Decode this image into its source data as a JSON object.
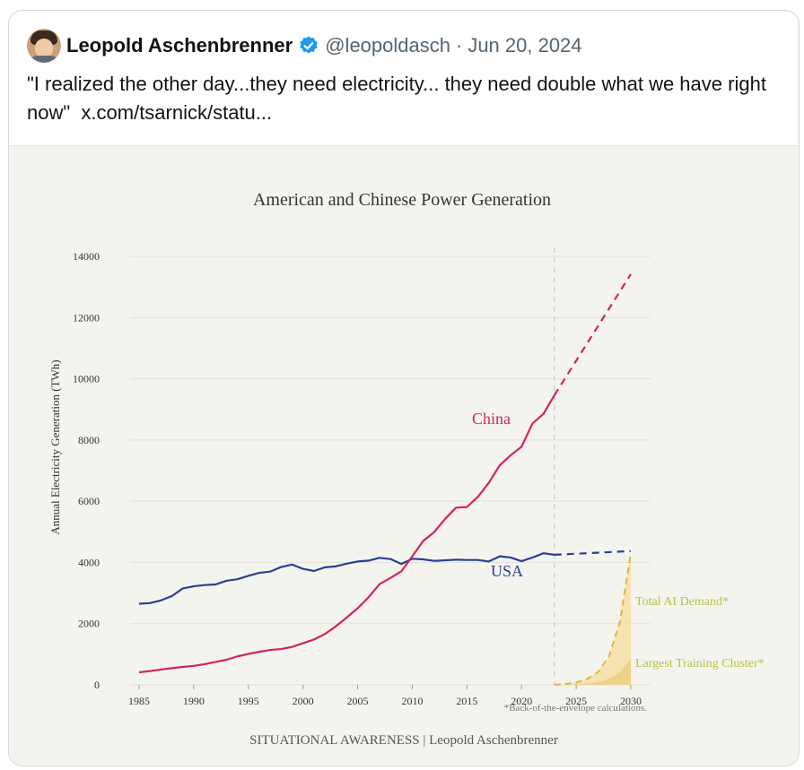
{
  "tweet": {
    "display_name": "Leopold Aschenbrenner",
    "handle": "@leopoldasch",
    "separator": "·",
    "date": "Jun 20, 2024",
    "text": "\"I realized the other day...they need electricity... they need double what we have right now\"",
    "link_text": "x.com/tsarnick/statu..."
  },
  "icons": {
    "verified": "verified-badge-icon",
    "avatar": "avatar-image"
  },
  "colors": {
    "china": "#d62453",
    "usa": "#2b3f95",
    "ai_demand": "#e8b23a",
    "annotation": "#b9c23a",
    "axis_text": "#333333",
    "media_bg": "#f4f4ef"
  },
  "chart_data": {
    "type": "line",
    "title": "American and Chinese Power Generation",
    "ylabel": "Annual Electricity Generation (TWh)",
    "xlabel": "",
    "xlim": [
      1985,
      2030
    ],
    "ylim": [
      0,
      14000
    ],
    "x_ticks": [
      1985,
      1990,
      1995,
      2000,
      2005,
      2010,
      2015,
      2020,
      2025,
      2030
    ],
    "y_ticks": [
      0,
      2000,
      4000,
      6000,
      8000,
      10000,
      12000,
      14000
    ],
    "vertical_marker_x": 2023,
    "series": [
      {
        "name": "China",
        "label": "China",
        "color": "#d62453",
        "x": [
          1985,
          1986,
          1987,
          1988,
          1989,
          1990,
          1991,
          1992,
          1993,
          1994,
          1995,
          1996,
          1997,
          1998,
          1999,
          2000,
          2001,
          2002,
          2003,
          2004,
          2005,
          2006,
          2007,
          2008,
          2009,
          2010,
          2011,
          2012,
          2013,
          2014,
          2015,
          2016,
          2017,
          2018,
          2019,
          2020,
          2021,
          2022,
          2023
        ],
        "values": [
          410,
          450,
          500,
          545,
          585,
          620,
          675,
          750,
          820,
          930,
          1010,
          1080,
          1140,
          1170,
          1240,
          1360,
          1480,
          1660,
          1910,
          2200,
          2500,
          2860,
          3290,
          3490,
          3710,
          4200,
          4700,
          4990,
          5420,
          5790,
          5810,
          6140,
          6600,
          7170,
          7500,
          7780,
          8540,
          8850,
          9460
        ],
        "projection": {
          "x": [
            2023,
            2030
          ],
          "values": [
            9460,
            13420
          ]
        }
      },
      {
        "name": "USA",
        "label": "USA",
        "color": "#2b3f95",
        "x": [
          1985,
          1986,
          1987,
          1988,
          1989,
          1990,
          1991,
          1992,
          1993,
          1994,
          1995,
          1996,
          1997,
          1998,
          1999,
          2000,
          2001,
          2002,
          2003,
          2004,
          2005,
          2006,
          2007,
          2008,
          2009,
          2010,
          2011,
          2012,
          2013,
          2014,
          2015,
          2016,
          2017,
          2018,
          2019,
          2020,
          2021,
          2022,
          2023
        ],
        "values": [
          2650,
          2670,
          2760,
          2900,
          3150,
          3220,
          3260,
          3280,
          3400,
          3450,
          3560,
          3660,
          3700,
          3850,
          3930,
          3790,
          3720,
          3840,
          3870,
          3960,
          4030,
          4060,
          4150,
          4110,
          3950,
          4120,
          4100,
          4050,
          4070,
          4090,
          4080,
          4080,
          4030,
          4200,
          4160,
          4040,
          4160,
          4300,
          4250
        ],
        "projection": {
          "x": [
            2023,
            2030
          ],
          "values": [
            4250,
            4370
          ]
        }
      },
      {
        "name": "Total AI Demand",
        "label": "Total AI Demand*",
        "color": "#e8b23a",
        "x": [
          2023,
          2024,
          2025,
          2026,
          2027,
          2028,
          2029,
          2030
        ],
        "values": [
          0,
          25,
          75,
          190,
          420,
          930,
          2050,
          4300
        ]
      },
      {
        "name": "Largest Training Cluster",
        "label": "Largest Training Cluster*",
        "color": "#e8b23a",
        "x": [
          2023,
          2024,
          2025,
          2026,
          2027,
          2028,
          2029,
          2030
        ],
        "values": [
          0,
          5,
          15,
          40,
          90,
          200,
          420,
          850
        ]
      }
    ],
    "footnote": "*Back-of-the-envelope calculations.",
    "credit": "SITUATIONAL AWARENESS | Leopold Aschenbrenner"
  }
}
